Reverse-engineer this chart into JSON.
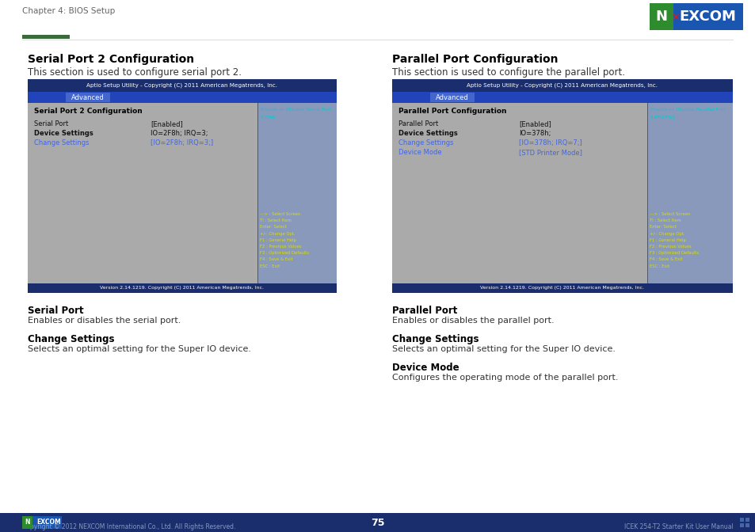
{
  "page_bg": "#ffffff",
  "header_text": "Chapter 4: BIOS Setup",
  "header_color": "#666666",
  "nexcom_bg": "#1a56b0",
  "nexcom_green": "#2e8b2e",
  "nexcom_red": "#cc2222",
  "bios_dark_bar": "#1a2e6e",
  "bios_blue_bar": "#2244bb",
  "bios_tab_bg": "#3355cc",
  "bios_gray_bg": "#aaaaaa",
  "bios_right_panel": "#8899bb",
  "bios_text_cyan": "#00cccc",
  "bios_text_yellow": "#dddd00",
  "bios_text_blue": "#4466dd",
  "footer_bg": "#1a2e6e",
  "separator_green": "#3a6a3a",
  "left_section": {
    "title": "Serial Port 2 Configuration",
    "subtitle": "This section is used to configure serial port 2.",
    "bios_header": "Aptio Setup Utility - Copyright (C) 2011 American Megatrends, Inc.",
    "bios_tab": "Advanced",
    "bios_title": "Serial Port 2 Configuration",
    "bios_help_line1": "Enable or Disable Serial Port",
    "bios_help_line2": "(COM)",
    "items": [
      {
        "label": "Serial Port",
        "value": "[Enabled]",
        "bold": false,
        "blue": false
      },
      {
        "label": "Device Settings",
        "value": "IO=2F8h; IRQ=3;",
        "bold": true,
        "blue": false
      },
      {
        "label": "Change Settings",
        "value": "[IO=2F8h; IRQ=3;]",
        "bold": false,
        "blue": true
      }
    ],
    "keys": [
      "---> : Select Screen",
      "Tl : Select Item",
      "Enter: Select",
      "+/-: Change Opt.",
      "F1 : General Help",
      "F2 : Previous Values",
      "F3 : Optimized Defaults",
      "F4 : Save & Exit",
      "ESC : Exit"
    ],
    "version": "Version 2.14.1219. Copyright (C) 2011 American Megatrends, Inc.",
    "desc_sections": [
      {
        "heading": "Serial Port",
        "text": "Enables or disables the serial port."
      },
      {
        "heading": "Change Settings",
        "text": "Selects an optimal setting for the Super IO device."
      }
    ]
  },
  "right_section": {
    "title": "Parallel Port Configuration",
    "subtitle": "This section is used to configure the parallel port.",
    "bios_header": "Aptio Setup Utility - Copyright (C) 2011 American Megatrends, Inc.",
    "bios_tab": "Advanced",
    "bios_title": "Parallel Port Configuration",
    "bios_help_line1": "Enable or Disable Parallel Port",
    "bios_help_line2": "(LPT/LPTe)",
    "items": [
      {
        "label": "Parallel Port",
        "value": "[Enabled]",
        "bold": false,
        "blue": false
      },
      {
        "label": "Device Settings",
        "value": "IO=378h;",
        "bold": true,
        "blue": false
      },
      {
        "label": "Change Settings",
        "value": "[IO=378h; IRQ=7;]",
        "bold": false,
        "blue": true
      },
      {
        "label": "Device Mode",
        "value": "[STD Printer Mode]",
        "bold": false,
        "blue": true
      }
    ],
    "keys": [
      "---> : Select Screen",
      "Tl : Select Item",
      "Enter: Select",
      "+/-: Change Opt.",
      "F1 : General Help",
      "F2 : Previous Values",
      "F3 : Optimized Defaults",
      "F4 : Save & Exit",
      "ESC : Exit"
    ],
    "version": "Version 2.14.1219. Copyright (C) 2011 American Megatrends, Inc.",
    "desc_sections": [
      {
        "heading": "Parallel Port",
        "text": "Enables or disables the parallel port."
      },
      {
        "heading": "Change Settings",
        "text": "Selects an optimal setting for the Super IO device."
      },
      {
        "heading": "Device Mode",
        "text": "Configures the operating mode of the parallel port."
      }
    ]
  },
  "footer_copyright": "Copyright © 2012 NEXCOM International Co., Ltd. All Rights Reserved.",
  "footer_page": "75",
  "footer_manual": "ICEK 254-T2 Starter Kit User Manual"
}
